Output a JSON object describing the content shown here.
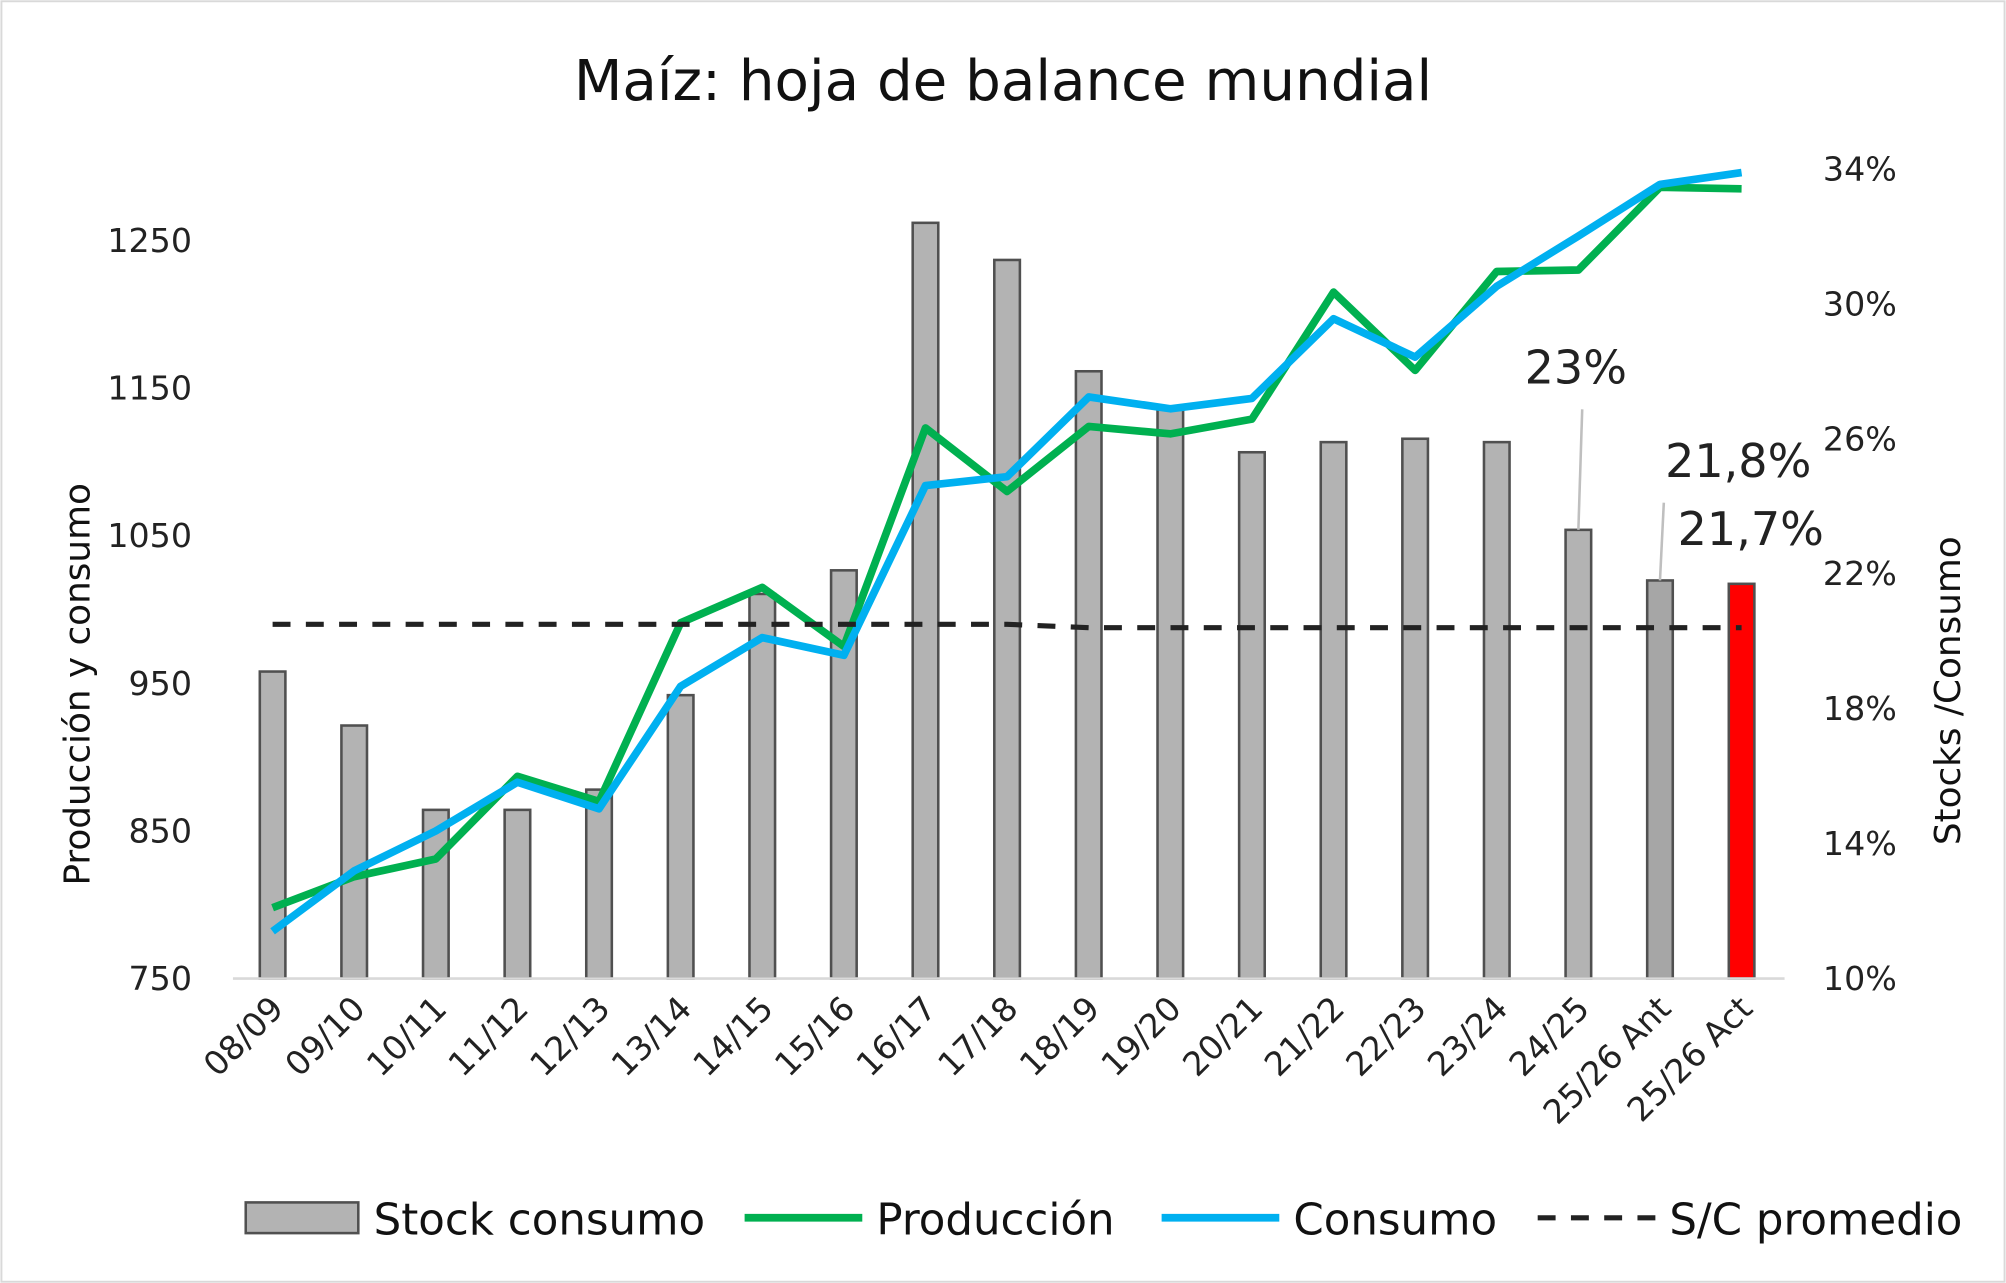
{
  "chart_data": {
    "type": "bar+line",
    "title": "Maíz: hoja de balance mundial",
    "ylabel": "Producción y consumo",
    "y2label": "Stocks /Consumo",
    "ylim": [
      750,
      1310
    ],
    "yticks": [
      "750",
      "850",
      "950",
      "1050",
      "1150",
      "1250"
    ],
    "y2lim": [
      10,
      35
    ],
    "y2ticks": [
      "10%",
      "14%",
      "18%",
      "22%",
      "26%",
      "30%",
      "34%"
    ],
    "categories": [
      "08/09",
      "09/10",
      "10/11",
      "11/12",
      "12/13",
      "13/14",
      "14/15",
      "15/16",
      "16/17",
      "17/18",
      "18/19",
      "19/20",
      "20/21",
      "21/22",
      "22/23",
      "23/24",
      "24/25",
      "25/26 Ant",
      "25/26 Act"
    ],
    "series": [
      {
        "name": "Stock consumo",
        "type": "bar",
        "axis": "right",
        "color": "#b3b3b3",
        "values": [
          19.1,
          17.5,
          15.0,
          15.0,
          15.6,
          18.4,
          21.4,
          22.1,
          32.4,
          31.3,
          28.0,
          26.9,
          25.6,
          25.9,
          26.0,
          25.9,
          23.3,
          21.8,
          21.7
        ]
      },
      {
        "name": "Producción",
        "type": "line",
        "axis": "left",
        "color": "#00b050",
        "values": [
          798,
          819,
          831,
          887,
          870,
          991,
          1015,
          975,
          1123,
          1080,
          1124,
          1119,
          1129,
          1215,
          1162,
          1229,
          1230,
          1286,
          1285
        ]
      },
      {
        "name": "Consumo",
        "type": "line",
        "axis": "left",
        "color": "#00b0f0",
        "values": [
          782,
          823,
          850,
          883,
          865,
          948,
          981,
          969,
          1084,
          1090,
          1144,
          1136,
          1143,
          1197,
          1171,
          1219,
          1253,
          1288,
          1296
        ]
      },
      {
        "name": "S/C promedio",
        "type": "line",
        "axis": "right",
        "dashed": true,
        "color": "#222222",
        "values": [
          20.5,
          20.5,
          20.5,
          20.5,
          20.5,
          20.5,
          20.5,
          20.5,
          20.5,
          20.5,
          20.4,
          20.4,
          20.4,
          20.4,
          20.4,
          20.4,
          20.4,
          20.4,
          20.4
        ]
      }
    ],
    "bar_colors_special": {
      "25/26 Ant": "#a6a6a6",
      "25/26 Act": "#ff0000"
    },
    "annotations": [
      {
        "category": "24/25",
        "text": "23%"
      },
      {
        "category": "25/26 Ant",
        "text": "21,8%"
      },
      {
        "category": "25/26 Act",
        "text": "21,7%"
      }
    ],
    "legend_position": "bottom",
    "grid": false
  }
}
